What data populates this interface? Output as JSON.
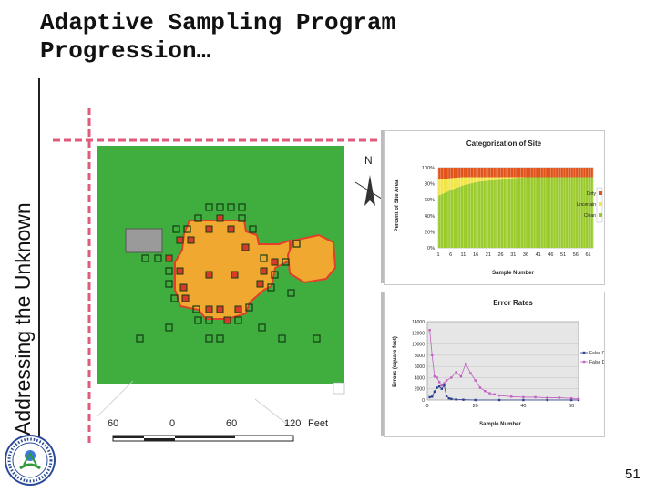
{
  "slide": {
    "title": "Adaptive Sampling Program Progression…",
    "side_label": "Addressing the Unknown",
    "page_number": "51"
  },
  "map": {
    "north_label": "N",
    "scale_labels": [
      "60",
      "0",
      "60",
      "120",
      "Feet"
    ]
  },
  "colors": {
    "background_field": "#3fae3f",
    "dirty_area": "#f0a830",
    "dirty_outline": "#e0402a",
    "sample_dirty": "#d63a2a",
    "dirty": "#e0541c",
    "uncertain": "#f2e54a",
    "clean": "#9acb2c",
    "false_clean": "#2b3e8c",
    "false_dirty": "#c060c0"
  },
  "chart_data": [
    {
      "type": "area",
      "title": "Categorization of Site",
      "xlabel": "Sample Number",
      "ylabel": "Percent of Site Area",
      "x_ticks": [
        "1",
        "6",
        "11",
        "16",
        "21",
        "26",
        "31",
        "36",
        "41",
        "46",
        "51",
        "56",
        "61"
      ],
      "y_ticks": [
        "0%",
        "20%",
        "40%",
        "60%",
        "80%",
        "100%"
      ],
      "ylim": [
        0,
        100
      ],
      "legend": [
        "Dirty",
        "Uncertain",
        "Clean"
      ],
      "series": [
        {
          "name": "Clean",
          "x": [
            1,
            6,
            11,
            16,
            21,
            26,
            31,
            36,
            41,
            46,
            51,
            56,
            61,
            63
          ],
          "values": [
            65,
            72,
            78,
            82,
            84,
            85,
            87,
            88,
            88,
            88,
            88,
            88,
            88,
            88
          ]
        },
        {
          "name": "Uncertain",
          "x": [
            1,
            6,
            11,
            16,
            21,
            26,
            31,
            36,
            41,
            46,
            51,
            56,
            61,
            63
          ],
          "values": [
            20,
            15,
            10,
            6,
            4,
            3,
            1,
            0,
            0,
            0,
            0,
            0,
            0,
            0
          ]
        },
        {
          "name": "Dirty",
          "x": [
            1,
            6,
            11,
            16,
            21,
            26,
            31,
            36,
            41,
            46,
            51,
            56,
            61,
            63
          ],
          "values": [
            15,
            13,
            12,
            12,
            12,
            12,
            12,
            12,
            12,
            12,
            12,
            12,
            12,
            12
          ]
        }
      ]
    },
    {
      "type": "line",
      "title": "Error Rates",
      "xlabel": "Sample Number",
      "ylabel": "Errors (square feet)",
      "x_ticks": [
        "0",
        "20",
        "40",
        "60"
      ],
      "y_ticks": [
        "0",
        "2000",
        "4000",
        "6000",
        "8000",
        "10000",
        "12000",
        "14000"
      ],
      "xlim": [
        0,
        63
      ],
      "ylim": [
        0,
        14000
      ],
      "legend": [
        "False Clean",
        "False Dirty"
      ],
      "series": [
        {
          "name": "False Clean",
          "x": [
            1,
            2,
            3,
            4,
            5,
            6,
            7,
            8,
            9,
            10,
            12,
            15,
            20,
            30,
            40,
            50,
            60,
            63
          ],
          "values": [
            500,
            600,
            1500,
            2200,
            2400,
            2000,
            2600,
            700,
            300,
            200,
            100,
            50,
            0,
            0,
            0,
            0,
            0,
            0
          ]
        },
        {
          "name": "False Dirty",
          "x": [
            1,
            2,
            3,
            4,
            5,
            6,
            7,
            8,
            10,
            12,
            14,
            16,
            18,
            20,
            22,
            24,
            26,
            28,
            30,
            35,
            40,
            45,
            50,
            55,
            60,
            63
          ],
          "values": [
            12500,
            8000,
            4200,
            4000,
            3200,
            2600,
            3000,
            3500,
            4000,
            5000,
            4200,
            6500,
            4800,
            3500,
            2200,
            1600,
            1200,
            1000,
            800,
            600,
            500,
            500,
            400,
            400,
            300,
            200
          ]
        }
      ]
    }
  ]
}
